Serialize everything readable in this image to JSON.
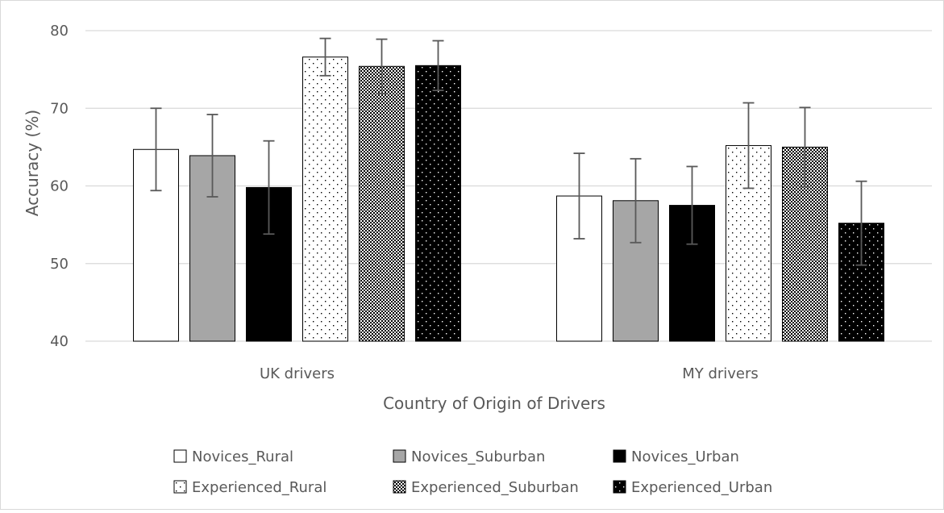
{
  "chart_data": {
    "type": "bar",
    "title": "",
    "xlabel": "Country of Origin of Drivers",
    "ylabel": "Accuracy (%)",
    "ylim": [
      40,
      80
    ],
    "yticks": [
      40,
      50,
      60,
      70,
      80
    ],
    "grid": true,
    "legend_position": "bottom",
    "categories": [
      "UK drivers",
      "MY drivers"
    ],
    "series": [
      {
        "name": "Novices_Rural",
        "pattern": "solid-white",
        "values": [
          64.7,
          58.7
        ],
        "errors": [
          5.3,
          5.5
        ]
      },
      {
        "name": "Novices_Suburban",
        "pattern": "solid-gray",
        "values": [
          63.9,
          58.1
        ],
        "errors": [
          5.3,
          5.4
        ]
      },
      {
        "name": "Novices_Urban",
        "pattern": "solid-black",
        "values": [
          59.8,
          57.5
        ],
        "errors": [
          6.0,
          5.0
        ]
      },
      {
        "name": "Experienced_Rural",
        "pattern": "dots-on-white",
        "values": [
          76.6,
          65.2
        ],
        "errors": [
          2.4,
          5.5
        ]
      },
      {
        "name": "Experienced_Suburban",
        "pattern": "checker",
        "values": [
          75.4,
          65.0
        ],
        "errors": [
          3.5,
          5.1
        ]
      },
      {
        "name": "Experienced_Urban",
        "pattern": "dots-on-black",
        "values": [
          75.5,
          55.2
        ],
        "errors": [
          3.2,
          5.4
        ]
      }
    ],
    "colors": {
      "gray_fill": "#a6a6a6",
      "black_fill": "#000000",
      "gridline": "#d9d9d9",
      "text": "#595959",
      "error_bar": "#595959"
    }
  }
}
